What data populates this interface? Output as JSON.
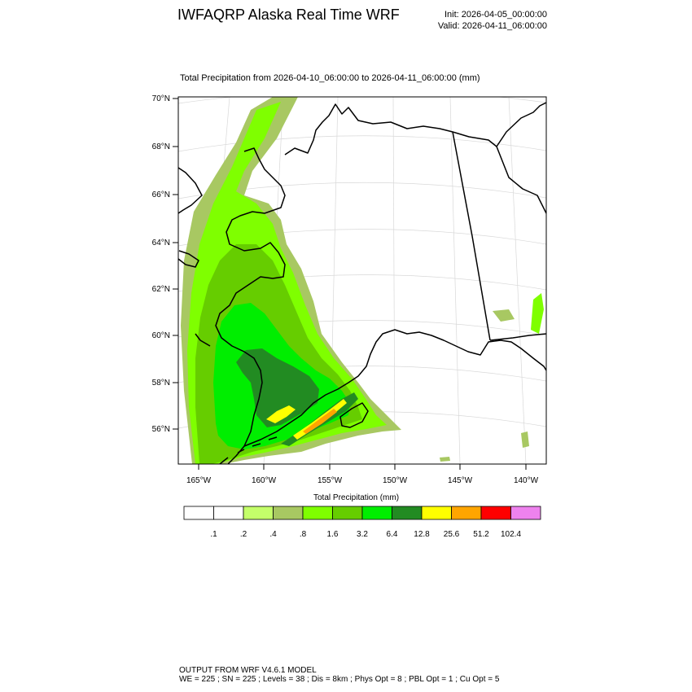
{
  "header": {
    "title": "IWFAQRP Alaska Real Time WRF",
    "init": "Init: 2026-04-05_00:00:00",
    "valid": "Valid: 2026-04-11_06:00:00"
  },
  "plot": {
    "subtitle": "Total Precipitation from 2026-04-10_06:00:00 to 2026-04-11_06:00:00   (mm)",
    "lat_labels": [
      "70°N",
      "68°N",
      "66°N",
      "64°N",
      "62°N",
      "60°N",
      "58°N",
      "56°N"
    ],
    "lon_labels": [
      "165°W",
      "160°W",
      "155°W",
      "150°W",
      "145°W",
      "140°W"
    ]
  },
  "colorbar": {
    "title": "Total Precipitation  (mm)",
    "colors": [
      "#ffffff",
      "#ffffff",
      "#c4ff6a",
      "#a8c862",
      "#7fff00",
      "#66cd00",
      "#00ee00",
      "#228b22",
      "#ffff00",
      "#ffa500",
      "#ff0000",
      "#ee82ee"
    ],
    "labels": [
      ".1",
      ".2",
      ".4",
      ".8",
      "1.6",
      "3.2",
      "6.4",
      "12.8",
      "25.6",
      "51.2",
      "102.4"
    ]
  },
  "footer": {
    "line1": "OUTPUT FROM WRF V4.6.1 MODEL",
    "line2": "WE = 225 ; SN = 225 ; Levels = 38 ; Dis = 8km ; Phys Opt = 8 ; PBL Opt = 1 ; Cu Opt = 5"
  }
}
